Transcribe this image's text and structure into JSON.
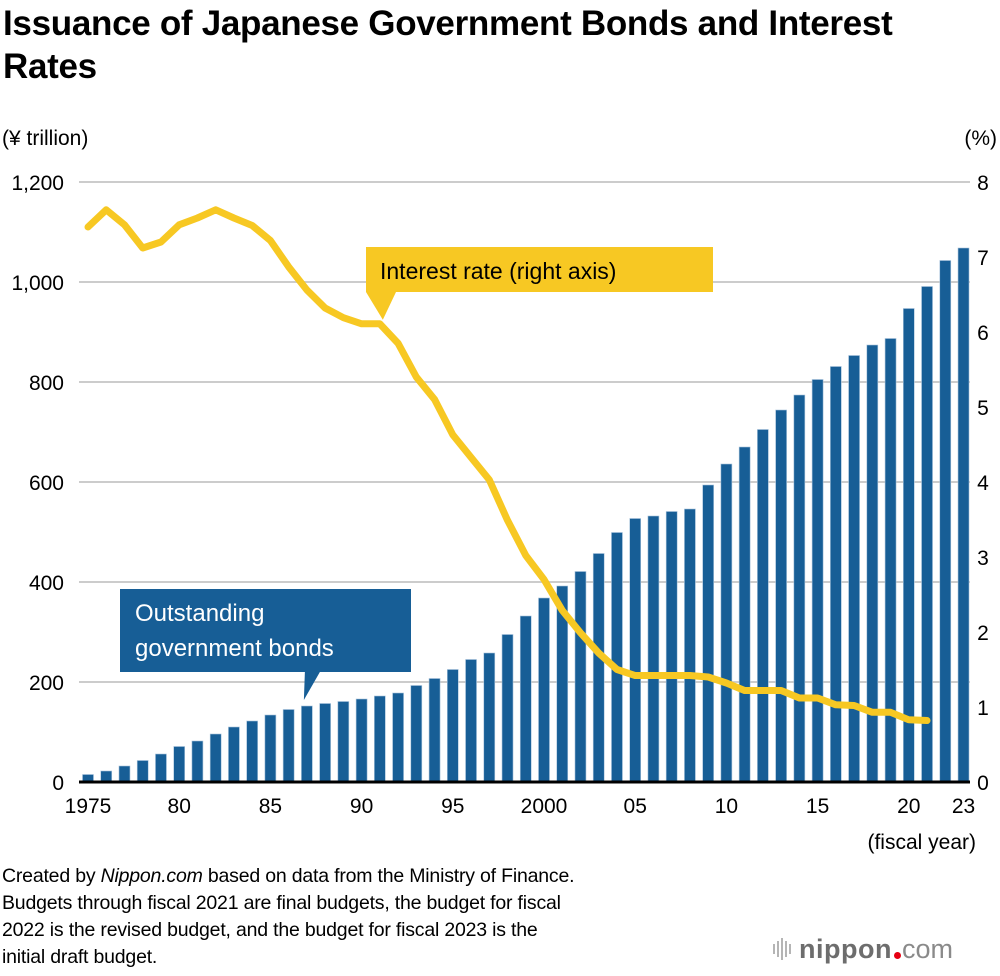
{
  "chart_data": {
    "type": "bar",
    "title": "Issuance of Japanese Government Bonds and Interest Rates",
    "left_axis_unit": "(¥ trillion)",
    "right_axis_unit": "(%)",
    "xlabel": "(fiscal year)",
    "ylim": [
      0,
      1200
    ],
    "y2lim": [
      0,
      8
    ],
    "yticks": [
      "0",
      "200",
      "400",
      "600",
      "800",
      "1,000",
      "1,200"
    ],
    "ytick_values": [
      0,
      200,
      400,
      600,
      800,
      1000,
      1200
    ],
    "y2ticks": [
      "0",
      "1",
      "2",
      "3",
      "4",
      "5",
      "6",
      "7",
      "8"
    ],
    "y2tick_values": [
      0,
      1,
      2,
      3,
      4,
      5,
      6,
      7,
      8
    ],
    "grid": true,
    "x": [
      1975,
      1976,
      1977,
      1978,
      1979,
      1980,
      1981,
      1982,
      1983,
      1984,
      1985,
      1986,
      1987,
      1988,
      1989,
      1990,
      1991,
      1992,
      1993,
      1994,
      1995,
      1996,
      1997,
      1998,
      1999,
      2000,
      2001,
      2002,
      2003,
      2004,
      2005,
      2006,
      2007,
      2008,
      2009,
      2010,
      2011,
      2012,
      2013,
      2014,
      2015,
      2016,
      2017,
      2018,
      2019,
      2020,
      2021,
      2022,
      2023
    ],
    "xtick_labels": [
      {
        "year": 1975,
        "label": "1975"
      },
      {
        "year": 1980,
        "label": "80"
      },
      {
        "year": 1985,
        "label": "85"
      },
      {
        "year": 1990,
        "label": "90"
      },
      {
        "year": 1995,
        "label": "95"
      },
      {
        "year": 2000,
        "label": "2000"
      },
      {
        "year": 2005,
        "label": "05"
      },
      {
        "year": 2010,
        "label": "10"
      },
      {
        "year": 2015,
        "label": "15"
      },
      {
        "year": 2020,
        "label": "20"
      },
      {
        "year": 2023,
        "label": "23"
      }
    ],
    "series": [
      {
        "name": "Outstanding government bonds",
        "type": "bar",
        "axis": "left",
        "color": "#175e96",
        "values": [
          15,
          22,
          32,
          43,
          56,
          71,
          82,
          96,
          110,
          122,
          134,
          145,
          152,
          157,
          161,
          166,
          172,
          178,
          193,
          207,
          225,
          245,
          258,
          295,
          332,
          368,
          392,
          421,
          457,
          499,
          527,
          532,
          541,
          546,
          594,
          636,
          670,
          705,
          744,
          774,
          805,
          831,
          853,
          874,
          887,
          947,
          991,
          1043,
          1068
        ]
      },
      {
        "name": "Interest rate (right axis)",
        "type": "line",
        "axis": "right",
        "color": "#f7c823",
        "values": [
          7.4,
          7.63,
          7.43,
          7.12,
          7.2,
          7.43,
          7.52,
          7.63,
          7.52,
          7.42,
          7.22,
          6.87,
          6.56,
          6.32,
          6.19,
          6.11,
          6.11,
          5.85,
          5.4,
          5.1,
          4.63,
          4.33,
          4.03,
          3.49,
          3.02,
          2.7,
          2.29,
          1.99,
          1.72,
          1.5,
          1.42,
          1.42,
          1.42,
          1.42,
          1.4,
          1.32,
          1.22,
          1.22,
          1.22,
          1.12,
          1.12,
          1.03,
          1.02,
          0.93,
          0.93,
          0.83,
          0.82,
          null,
          null
        ]
      }
    ],
    "annotations": {
      "rate_callout": "Interest rate (right axis)",
      "bonds_callout_line1": "Outstanding",
      "bonds_callout_line2": "government bonds"
    }
  },
  "footer": {
    "line1_prefix": "Created by ",
    "line1_source": "Nippon.com",
    "line1_suffix": " based on data from the Ministry of Finance.",
    "line2": "Budgets through fiscal 2021 are final budgets, the budget for fiscal",
    "line3": "2022 is the revised budget, and the budget for fiscal 2023 is the",
    "line4": "initial draft budget."
  },
  "logo": {
    "icon": "nippon-bars-icon",
    "name": "nippon",
    "suffix": "com",
    "dot_color": "#e60012"
  }
}
